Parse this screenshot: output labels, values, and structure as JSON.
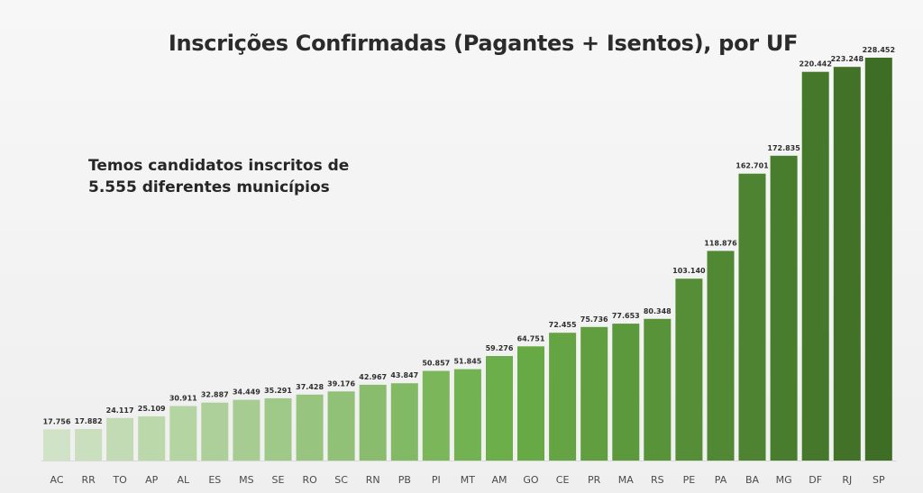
{
  "slide": {
    "title": "Inscrições Confirmadas (Pagantes + Isentos), por UF",
    "note_line1": "Temos candidatos inscritos de",
    "note_line2": "5.555 diferentes municípios"
  },
  "chart_data": {
    "type": "bar",
    "title": "Inscrições Confirmadas (Pagantes + Isentos), por UF",
    "xlabel": "",
    "ylabel": "",
    "grid": false,
    "legend": "none",
    "ylim": [
      0,
      240000
    ],
    "categories": [
      "AC",
      "RR",
      "TO",
      "AP",
      "AL",
      "ES",
      "MS",
      "SE",
      "RO",
      "SC",
      "RN",
      "PB",
      "PI",
      "MT",
      "AM",
      "GO",
      "CE",
      "PR",
      "MA",
      "RS",
      "PE",
      "PA",
      "BA",
      "MG",
      "DF",
      "RJ",
      "SP"
    ],
    "values": [
      17756,
      17882,
      24117,
      25109,
      30911,
      32887,
      34449,
      35291,
      37428,
      39176,
      42967,
      43847,
      50857,
      51845,
      59276,
      64751,
      72455,
      75736,
      77653,
      80348,
      103140,
      118876,
      162701,
      172835,
      220442,
      223248,
      228452
    ],
    "value_labels": [
      "17.756",
      "17.882",
      "24.117",
      "25.109",
      "30.911",
      "32.887",
      "34.449",
      "35.291",
      "37.428",
      "39.176",
      "42.967",
      "43.847",
      "50.857",
      "51.845",
      "59.276",
      "64.751",
      "72.455",
      "75.736",
      "77.653",
      "80.348",
      "103.140",
      "118.876",
      "162.701",
      "172.835",
      "220.442",
      "223.248",
      "228.452"
    ],
    "color_start": "#d1e3c6",
    "color_mid": "#6aad47",
    "color_end": "#3e6d25"
  }
}
